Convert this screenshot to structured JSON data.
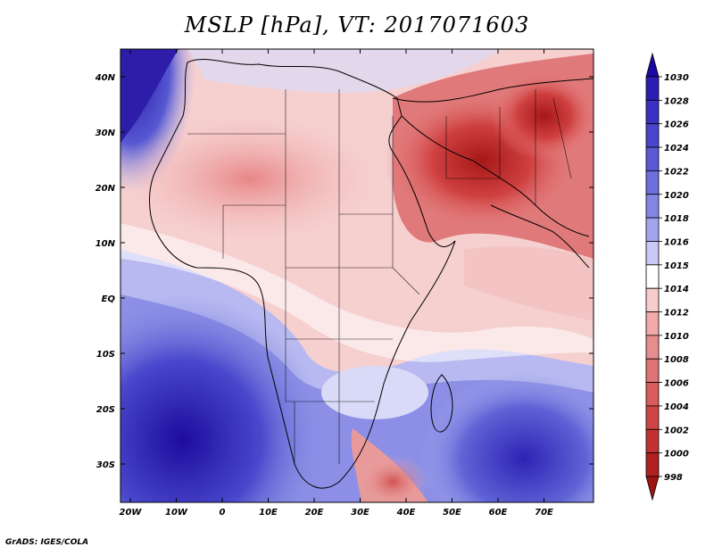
{
  "title": "MSLP [hPa], VT: 2017071603",
  "credit": "GrADS: IGES/COLA",
  "lat_labels": [
    "40N",
    "30N",
    "20N",
    "10N",
    "EQ",
    "10S",
    "20S",
    "30S"
  ],
  "lon_labels": [
    "20W",
    "10W",
    "0",
    "10E",
    "20E",
    "30E",
    "40E",
    "50E",
    "60E",
    "70E"
  ],
  "colorbar": {
    "levels": [
      "1030",
      "1028",
      "1026",
      "1024",
      "1022",
      "1020",
      "1018",
      "1016",
      "1015",
      "1014",
      "1012",
      "1010",
      "1008",
      "1006",
      "1004",
      "1002",
      "1000",
      "998"
    ],
    "colors": [
      "#1a0aa0",
      "#2b1cb3",
      "#3b30c2",
      "#4a45cc",
      "#5a5ad4",
      "#6d6fdd",
      "#8486e4",
      "#a3a5ec",
      "#c8c9f4",
      "#ffffff",
      "#f6cccc",
      "#f1a9a9",
      "#e88d8d",
      "#e07474",
      "#d85c5c",
      "#cf4545",
      "#c23232",
      "#b02222",
      "#9c1414"
    ]
  }
}
